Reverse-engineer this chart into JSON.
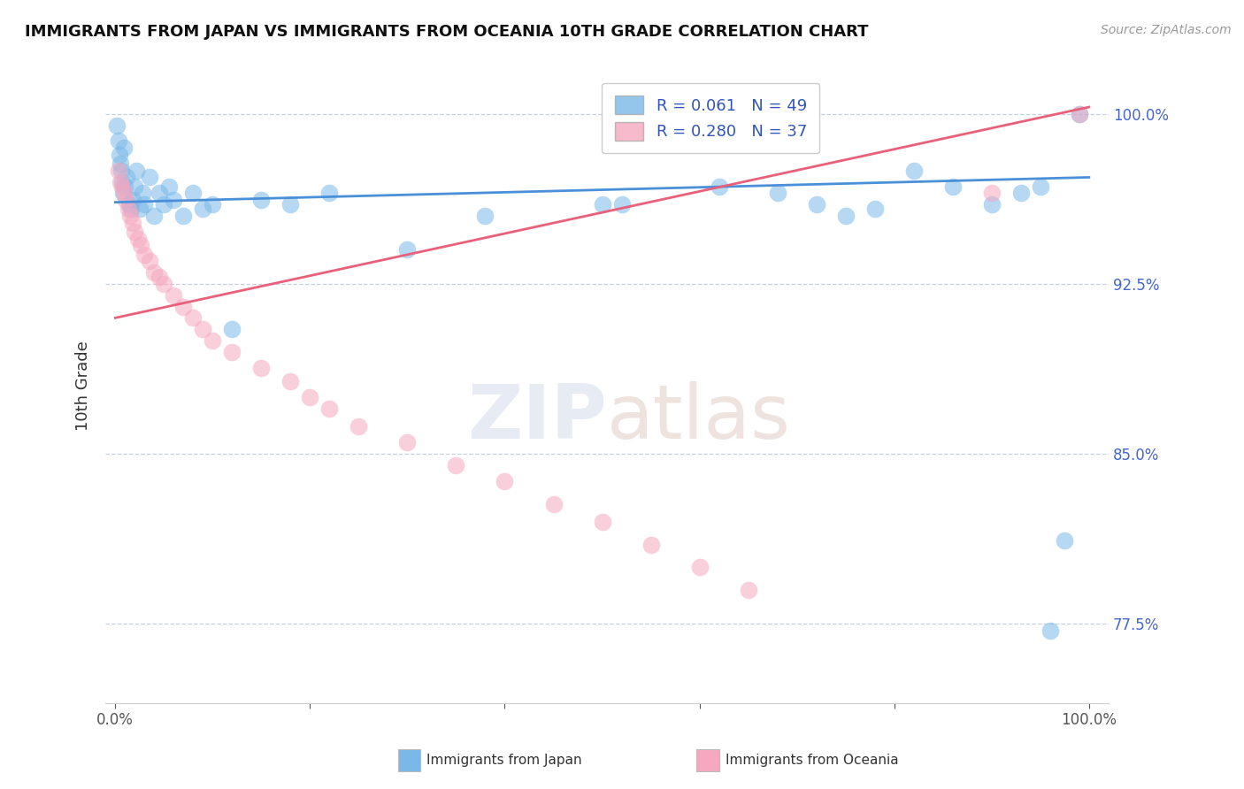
{
  "title": "IMMIGRANTS FROM JAPAN VS IMMIGRANTS FROM OCEANIA 10TH GRADE CORRELATION CHART",
  "source": "Source: ZipAtlas.com",
  "ylabel": "10th Grade",
  "legend_label_blue": "Immigrants from Japan",
  "legend_label_pink": "Immigrants from Oceania",
  "R_blue": 0.061,
  "N_blue": 49,
  "R_pink": 0.28,
  "N_pink": 37,
  "blue_color": "#7ab8e8",
  "pink_color": "#f5a8c0",
  "blue_line_color": "#4a90d9",
  "pink_line_color": "#e8607a",
  "xmin": 0.0,
  "xmax": 1.0,
  "ymin": 0.74,
  "ymax": 1.02,
  "ytick_values": [
    0.775,
    0.85,
    0.925,
    1.0
  ],
  "ytick_labels": [
    "77.5%",
    "85.0%",
    "92.5%",
    "100.0%"
  ],
  "blue_trend_x": [
    0.0,
    1.0
  ],
  "blue_trend_y": [
    0.961,
    0.972
  ],
  "pink_trend_x": [
    0.0,
    1.0
  ],
  "pink_trend_y": [
    0.91,
    1.003
  ],
  "japan_x": [
    0.002,
    0.003,
    0.004,
    0.005,
    0.006,
    0.007,
    0.008,
    0.009,
    0.01,
    0.012,
    0.014,
    0.016,
    0.018,
    0.02,
    0.022,
    0.025,
    0.028,
    0.03,
    0.035,
    0.04,
    0.045,
    0.05,
    0.055,
    0.06,
    0.07,
    0.08,
    0.09,
    0.1,
    0.12,
    0.15,
    0.18,
    0.22,
    0.3,
    0.38,
    0.5,
    0.52,
    0.62,
    0.68,
    0.72,
    0.75,
    0.78,
    0.82,
    0.86,
    0.9,
    0.93,
    0.95,
    0.96,
    0.975,
    0.99
  ],
  "japan_y": [
    0.995,
    0.988,
    0.982,
    0.978,
    0.975,
    0.97,
    0.965,
    0.985,
    0.968,
    0.972,
    0.96,
    0.958,
    0.962,
    0.968,
    0.975,
    0.958,
    0.965,
    0.96,
    0.972,
    0.955,
    0.965,
    0.96,
    0.968,
    0.962,
    0.955,
    0.965,
    0.958,
    0.96,
    0.905,
    0.962,
    0.96,
    0.965,
    0.94,
    0.955,
    0.96,
    0.96,
    0.968,
    0.965,
    0.96,
    0.955,
    0.958,
    0.975,
    0.968,
    0.96,
    0.965,
    0.968,
    0.772,
    0.812,
    1.0
  ],
  "oceania_x": [
    0.003,
    0.005,
    0.007,
    0.009,
    0.011,
    0.013,
    0.015,
    0.018,
    0.02,
    0.023,
    0.026,
    0.03,
    0.035,
    0.04,
    0.045,
    0.05,
    0.06,
    0.07,
    0.08,
    0.09,
    0.1,
    0.12,
    0.15,
    0.18,
    0.2,
    0.22,
    0.25,
    0.3,
    0.35,
    0.4,
    0.45,
    0.5,
    0.55,
    0.6,
    0.65,
    0.9,
    0.99
  ],
  "oceania_y": [
    0.975,
    0.97,
    0.968,
    0.965,
    0.962,
    0.958,
    0.955,
    0.952,
    0.948,
    0.945,
    0.942,
    0.938,
    0.935,
    0.93,
    0.928,
    0.925,
    0.92,
    0.915,
    0.91,
    0.905,
    0.9,
    0.895,
    0.888,
    0.882,
    0.875,
    0.87,
    0.862,
    0.855,
    0.845,
    0.838,
    0.828,
    0.82,
    0.81,
    0.8,
    0.79,
    0.965,
    1.0
  ]
}
